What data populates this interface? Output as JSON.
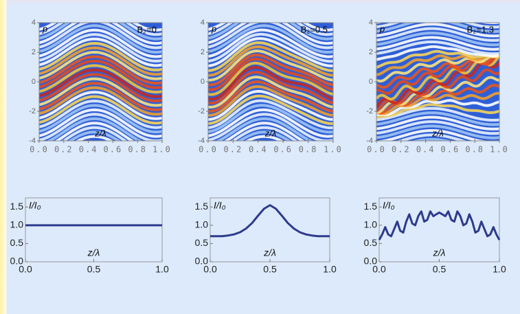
{
  "chart_data": [
    {
      "type": "density",
      "label": "p",
      "annotation": "B₂=0",
      "xlabel": "z/λ",
      "xlim": [
        0,
        1
      ],
      "ylim": [
        -4,
        4
      ],
      "xticks": [
        {
          "value": 0,
          "label": "0.0"
        },
        {
          "value": 0.2,
          "label": "0.2"
        },
        {
          "value": 0.4,
          "label": "0.4"
        },
        {
          "value": 0.6,
          "label": "0.6"
        },
        {
          "value": 0.8,
          "label": "0.8"
        },
        {
          "value": 1,
          "label": "1.0"
        }
      ],
      "yticks": [
        -4,
        -2,
        0,
        2,
        4
      ]
    },
    {
      "type": "density",
      "label": "p",
      "annotation": "B₂=0.5",
      "xlabel": "z/λ",
      "xlim": [
        0,
        1
      ],
      "ylim": [
        -4,
        4
      ],
      "xticks": [
        {
          "value": 0,
          "label": "0.0"
        },
        {
          "value": 0.2,
          "label": "0.2"
        },
        {
          "value": 0.4,
          "label": "0.4"
        },
        {
          "value": 0.6,
          "label": "0.6"
        },
        {
          "value": 0.8,
          "label": "0.8"
        },
        {
          "value": 1,
          "label": "1.0"
        }
      ],
      "yticks": [
        -4,
        -2,
        0,
        2,
        4
      ]
    },
    {
      "type": "density",
      "label": "p",
      "annotation": "B₂=1.3",
      "xlabel": "z/λ",
      "xlim": [
        0,
        1
      ],
      "ylim": [
        -4,
        4
      ],
      "xticks": [
        {
          "value": 0,
          "label": "0.0"
        },
        {
          "value": 0.2,
          "label": "0.2"
        },
        {
          "value": 0.4,
          "label": "0.4"
        },
        {
          "value": 0.6,
          "label": "0.6"
        },
        {
          "value": 0.8,
          "label": "0.8"
        },
        {
          "value": 1,
          "label": "1.0"
        }
      ],
      "yticks": [
        -4,
        -2,
        0,
        2,
        4
      ]
    },
    {
      "type": "line",
      "label": "I/I₀",
      "xlabel": "z/λ",
      "color": "#2e3a8c",
      "x": [
        0,
        1
      ],
      "values": [
        1.0,
        1.0
      ],
      "xlim": [
        0,
        1
      ],
      "ylim": [
        0,
        1.75
      ],
      "xticks": [
        {
          "value": 0,
          "label": "0.0"
        },
        {
          "value": 0.5,
          "label": "0.5"
        },
        {
          "value": 1,
          "label": "1.0"
        }
      ],
      "yticks": [
        {
          "value": 0,
          "label": "0.0"
        },
        {
          "value": 0.5,
          "label": "0.5"
        },
        {
          "value": 1,
          "label": "1.0"
        },
        {
          "value": 1.5,
          "label": "1.5"
        }
      ]
    },
    {
      "type": "line",
      "label": "I/I₀",
      "xlabel": "z/λ",
      "color": "#2e3a8c",
      "x": [
        0,
        0.05,
        0.1,
        0.15,
        0.2,
        0.25,
        0.3,
        0.35,
        0.4,
        0.45,
        0.5,
        0.55,
        0.6,
        0.65,
        0.7,
        0.75,
        0.8,
        0.85,
        0.9,
        0.95,
        1
      ],
      "values": [
        0.7,
        0.7,
        0.7,
        0.72,
        0.75,
        0.81,
        0.91,
        1.06,
        1.26,
        1.45,
        1.55,
        1.45,
        1.26,
        1.06,
        0.91,
        0.81,
        0.75,
        0.72,
        0.7,
        0.7,
        0.7
      ],
      "xlim": [
        0,
        1
      ],
      "ylim": [
        0,
        1.75
      ],
      "xticks": [
        {
          "value": 0,
          "label": "0.0"
        },
        {
          "value": 0.5,
          "label": "0.5"
        },
        {
          "value": 1,
          "label": "1.0"
        }
      ],
      "yticks": [
        {
          "value": 0,
          "label": "0.0"
        },
        {
          "value": 0.5,
          "label": "0.5"
        },
        {
          "value": 1,
          "label": "1.0"
        },
        {
          "value": 1.5,
          "label": "1.5"
        }
      ]
    },
    {
      "type": "line",
      "label": "I/I₀",
      "xlabel": "z/λ",
      "color": "#2e3a8c",
      "x": [
        0,
        0.025,
        0.05,
        0.075,
        0.1,
        0.125,
        0.15,
        0.175,
        0.2,
        0.225,
        0.25,
        0.275,
        0.3,
        0.325,
        0.35,
        0.375,
        0.4,
        0.425,
        0.45,
        0.475,
        0.5,
        0.525,
        0.55,
        0.575,
        0.6,
        0.625,
        0.65,
        0.675,
        0.7,
        0.725,
        0.75,
        0.775,
        0.8,
        0.825,
        0.85,
        0.875,
        0.9,
        0.925,
        0.95,
        0.975,
        1
      ],
      "values": [
        0.6,
        0.75,
        0.95,
        0.75,
        0.7,
        0.9,
        1.1,
        0.85,
        0.8,
        1.1,
        1.3,
        1.05,
        1.0,
        1.25,
        1.38,
        1.1,
        1.15,
        1.38,
        1.25,
        1.3,
        1.35,
        1.3,
        1.25,
        1.38,
        1.15,
        1.1,
        1.38,
        1.25,
        1.0,
        1.05,
        1.3,
        1.1,
        0.8,
        0.85,
        1.1,
        0.9,
        0.7,
        0.75,
        0.95,
        0.75,
        0.6
      ],
      "xlim": [
        0,
        1
      ],
      "ylim": [
        0,
        1.75
      ],
      "xticks": [
        {
          "value": 0,
          "label": "0.0"
        },
        {
          "value": 0.5,
          "label": "0.5"
        },
        {
          "value": 1,
          "label": "1.0"
        }
      ],
      "yticks": [
        {
          "value": 0,
          "label": "0.0"
        },
        {
          "value": 0.5,
          "label": "0.5"
        },
        {
          "value": 1,
          "label": "1.0"
        },
        {
          "value": 1.5,
          "label": "1.5"
        }
      ]
    }
  ]
}
